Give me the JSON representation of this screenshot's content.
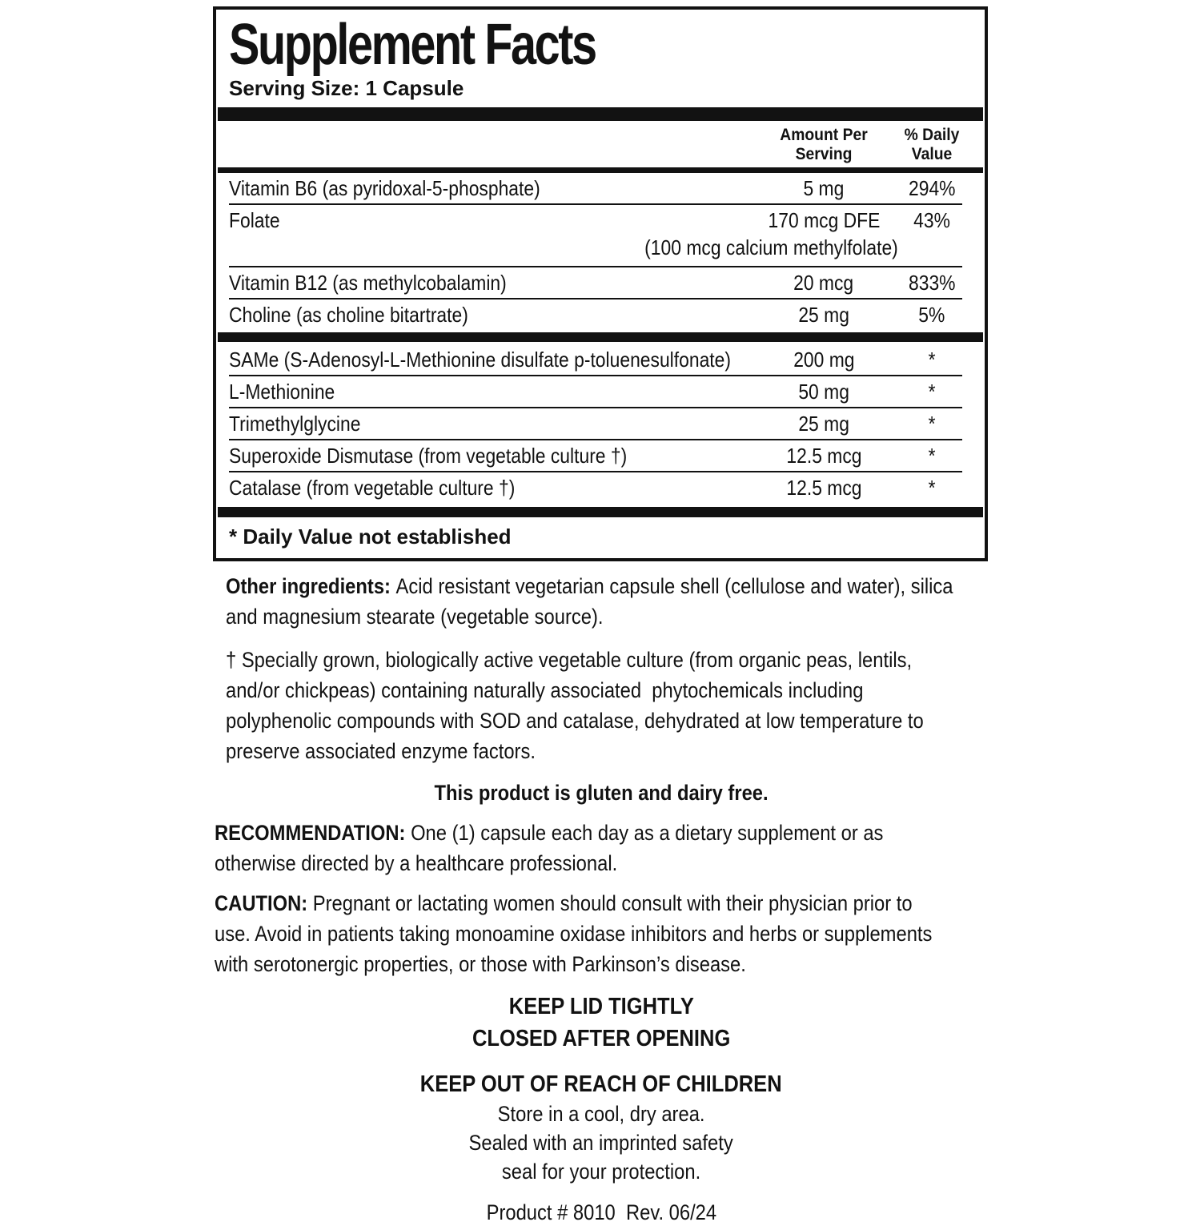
{
  "colors": {
    "ink": "#121212",
    "paper": "#ffffff"
  },
  "panel": {
    "title": "Supplement Facts",
    "serving_size": "Serving Size: 1 Capsule",
    "columns": {
      "amount": "Amount Per Serving",
      "daily_value": "% Daily Value"
    },
    "rows": [
      {
        "name": "Vitamin B6 (as pyridoxal-5-phosphate)",
        "amount": "5 mg",
        "dv": "294%"
      },
      {
        "name": "Folate",
        "amount": "170 mcg DFE",
        "amount_note": "(100 mcg calcium methylfolate)",
        "dv": "43%"
      },
      {
        "name": "Vitamin B12 (as methylcobalamin)",
        "amount": "20 mcg",
        "dv": "833%"
      },
      {
        "name": "Choline (as choline bitartrate)",
        "amount": "25 mg",
        "dv": "5%"
      },
      {
        "name": "SAMe (S-Adenosyl-L-Methionine disulfate p-toluenesulfonate)",
        "amount": "200 mg",
        "dv": "*",
        "bar_before": true
      },
      {
        "name": "L-Methionine",
        "amount": "50 mg",
        "dv": "*"
      },
      {
        "name": "Trimethylglycine",
        "amount": "25 mg",
        "dv": "*"
      },
      {
        "name": "Superoxide Dismutase (from vegetable culture †)",
        "amount": "12.5 mcg",
        "dv": "*"
      },
      {
        "name": "Catalase (from vegetable culture †)",
        "amount": "12.5 mcg",
        "dv": "*"
      }
    ],
    "footnote": "* Daily Value not established"
  },
  "sections": {
    "other_ingredients": {
      "lead": "Other ingredients:",
      "lines": [
        "Acid resistant vegetarian capsule shell (cellulose and water), silica",
        "and magnesium stearate (vegetable source)."
      ]
    },
    "dagger_note": {
      "lead": "",
      "lines": [
        "† Specially grown, biologically active vegetable culture (from organic peas, lentils,",
        "and/or chickpeas) containing naturally associated  phytochemicals including",
        "polyphenolic compounds with SOD and catalase, dehydrated at low temperature to",
        "preserve associated enzyme factors."
      ]
    },
    "gluten_free": "This product is gluten and dairy free.",
    "recommendation": {
      "lead": "RECOMMENDATION:",
      "lines": [
        "One (1) capsule each day as a dietary supplement or as",
        "otherwise directed by a healthcare professional."
      ]
    },
    "caution": {
      "lead": "CAUTION:",
      "lines": [
        "Pregnant or lactating women should consult with their physician prior to",
        "use. Avoid in patients taking monoamine oxidase inhibitors and herbs or supplements",
        "with serotonergic properties, or those with Parkinson’s disease."
      ]
    },
    "keep_lid": [
      "KEEP LID TIGHTLY",
      "CLOSED AFTER OPENING"
    ],
    "keep_out": "KEEP OUT OF REACH OF CHILDREN",
    "storage": [
      "Store in a cool, dry area.",
      "Sealed with an imprinted safety",
      "seal for your protection."
    ],
    "product_line": "Product # 8010  Rev. 06/24"
  }
}
